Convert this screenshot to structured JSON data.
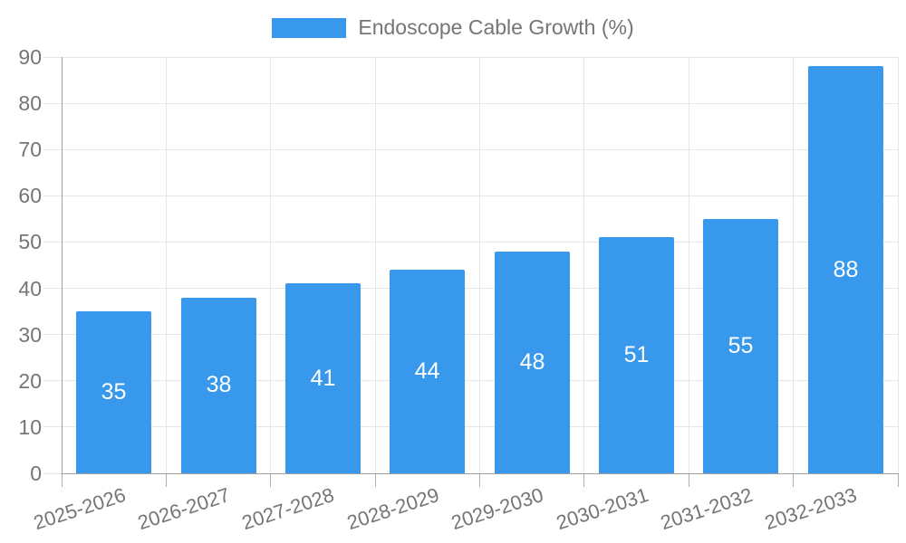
{
  "legend": {
    "items": [
      {
        "label": "Endoscope Cable Growth (%)",
        "color": "#3899ec"
      }
    ],
    "position": "top"
  },
  "colors": {
    "accent": "#3899ec",
    "grid": "#e6e6e6",
    "axis": "#9e9e9e",
    "tick_text": "#757575",
    "bar_label_text": "#ffffff",
    "background": "#ffffff"
  },
  "chart_data": {
    "type": "bar",
    "title": "Endoscope Cable Growth (%)",
    "categories": [
      "2025-2026",
      "2026-2027",
      "2027-2028",
      "2028-2029",
      "2029-2030",
      "2030-2031",
      "2031-2032",
      "2032-2033"
    ],
    "series": [
      {
        "name": "Endoscope Cable Growth (%)",
        "values": [
          35,
          38,
          41,
          44,
          48,
          51,
          55,
          88
        ],
        "color": "#3899ec"
      }
    ],
    "bar_value_labels": [
      "35",
      "38",
      "41",
      "44",
      "48",
      "51",
      "55",
      "88"
    ],
    "bar_value_label_position": "inside-center",
    "xlabel": "",
    "ylabel": "",
    "ylim": [
      0,
      90
    ],
    "yticks": [
      "0",
      "10",
      "20",
      "30",
      "40",
      "50",
      "60",
      "70",
      "80",
      "90"
    ],
    "grid": true,
    "x_tick_rotation_deg": -18,
    "legend_position": "top-center"
  }
}
